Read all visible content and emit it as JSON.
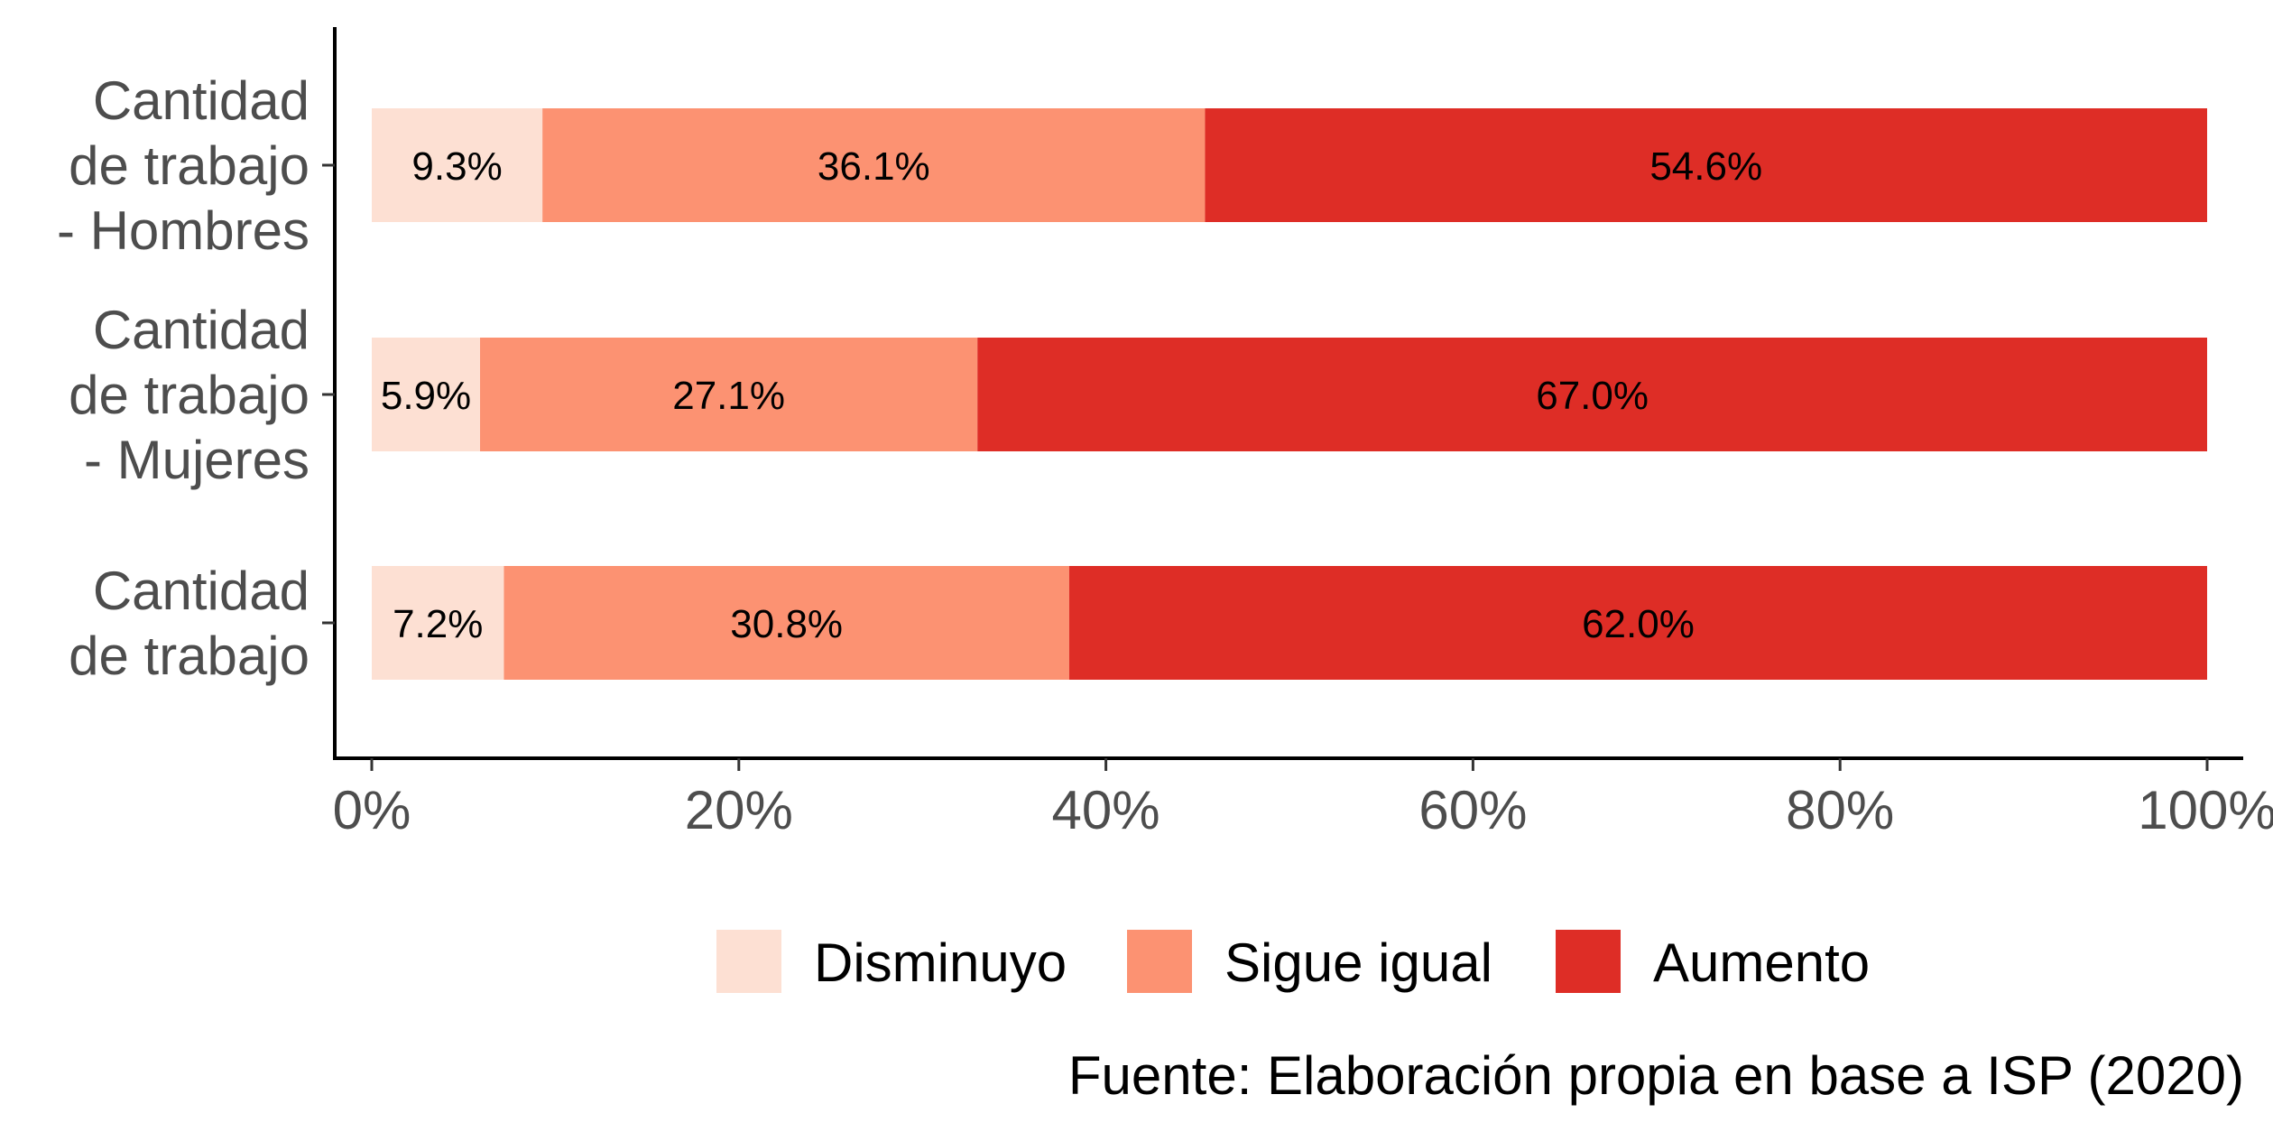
{
  "chart_data": {
    "type": "bar",
    "orientation": "horizontal",
    "stacked": true,
    "categories": [
      [
        "Cantidad",
        "de trabajo",
        "- Hombres"
      ],
      [
        "Cantidad",
        "de trabajo",
        "- Mujeres"
      ],
      [
        "Cantidad",
        "de trabajo"
      ]
    ],
    "series": [
      {
        "name": "Disminuyo",
        "color": "#fde0d3",
        "values": [
          9.3,
          5.9,
          7.2
        ],
        "labels": [
          "9.3%",
          "5.9%",
          "7.2%"
        ]
      },
      {
        "name": "Sigue igual",
        "color": "#fc9272",
        "values": [
          36.1,
          27.1,
          30.8
        ],
        "labels": [
          "36.1%",
          "27.1%",
          "30.8%"
        ]
      },
      {
        "name": "Aumento",
        "color": "#de2d26",
        "values": [
          54.6,
          67.0,
          62.0
        ],
        "labels": [
          "54.6%",
          "67.0%",
          "62.0%"
        ]
      }
    ],
    "xlim": [
      0,
      100
    ],
    "xticks": [
      0,
      20,
      40,
      60,
      80,
      100
    ],
    "xtick_labels": [
      "0%",
      "20%",
      "40%",
      "60%",
      "80%",
      "100%"
    ],
    "grid": false,
    "legend_position": "bottom",
    "caption": "Fuente: Elaboración propia en base a ISP (2020)"
  }
}
